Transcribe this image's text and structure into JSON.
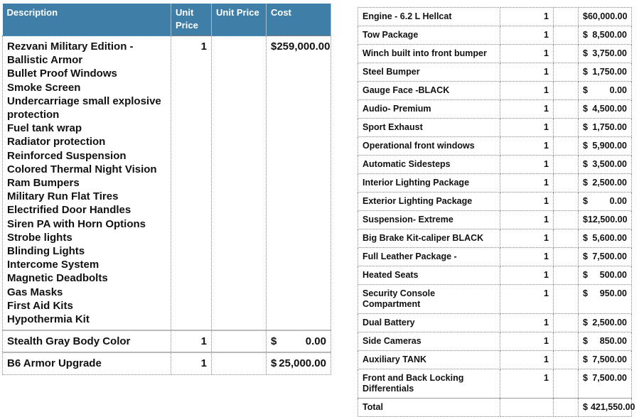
{
  "left_table": {
    "headers": [
      [
        "Description"
      ],
      [
        "Unit",
        "Price"
      ],
      [
        "Unit Price"
      ],
      [
        "Cost"
      ]
    ],
    "rows": [
      {
        "description": [
          "Rezvani  Military Edition -",
          "Ballistic Armor",
          "Bullet Proof Windows",
          "Smoke Screen",
          "Undercarriage small explosive",
          "protection",
          "Fuel tank wrap",
          "Radiator protection",
          "Reinforced Suspension",
          "Colored Thermal Night Vision",
          "Ram Bumpers",
          "Military Run Flat Tires",
          "Electrified Door Handles",
          "Siren PA with Horn Options",
          "Strobe lights",
          "Blinding Lights",
          "Intercome System",
          "Magnetic Deadbolts",
          "Gas Masks",
          "First Aid Kits",
          "Hypothermia Kit"
        ],
        "qty": "1",
        "currency": "$",
        "cost": "259,000.00"
      },
      {
        "description": [
          "Stealth Gray Body Color"
        ],
        "qty": "1",
        "currency": "$",
        "cost": "0.00"
      },
      {
        "description": [
          "B6 Armor Upgrade"
        ],
        "qty": "1",
        "currency": "$",
        "cost": "25,000.00"
      }
    ]
  },
  "right_table": {
    "rows": [
      {
        "description": [
          "Engine - 6.2 L Hellcat"
        ],
        "qty": "1",
        "currency": "$",
        "cost": "60,000.00"
      },
      {
        "description": [
          "Tow Package"
        ],
        "qty": "1",
        "currency": "$",
        "cost": "8,500.00"
      },
      {
        "description": [
          "Winch built into front bumper"
        ],
        "qty": "1",
        "currency": "$",
        "cost": "3,750.00"
      },
      {
        "description": [
          "Steel Bumper"
        ],
        "qty": "1",
        "currency": "$",
        "cost": "1,750.00"
      },
      {
        "description": [
          "Gauge Face -BLACK"
        ],
        "qty": "1",
        "currency": "$",
        "cost": "0.00"
      },
      {
        "description": [
          "Audio- Premium"
        ],
        "qty": "1",
        "currency": "$",
        "cost": "4,500.00"
      },
      {
        "description": [
          "Sport Exhaust"
        ],
        "qty": "1",
        "currency": "$",
        "cost": "1,750.00"
      },
      {
        "description": [
          "Operational front windows"
        ],
        "qty": "1",
        "currency": "$",
        "cost": "5,900.00"
      },
      {
        "description": [
          "Automatic Sidesteps"
        ],
        "qty": "1",
        "currency": "$",
        "cost": "3,500.00"
      },
      {
        "description": [
          "Interior Lighting Package"
        ],
        "qty": "1",
        "currency": "$",
        "cost": "2,500.00"
      },
      {
        "description": [
          "Exterior Lighting Package"
        ],
        "qty": "1",
        "currency": "$",
        "cost": "0.00"
      },
      {
        "description": [
          "Suspension- Extreme"
        ],
        "qty": "1",
        "currency": "$",
        "cost": "12,500.00"
      },
      {
        "description": [
          "Big Brake Kit-caliper BLACK"
        ],
        "qty": "1",
        "currency": "$",
        "cost": "5,600.00"
      },
      {
        "description": [
          "Full Leather Package -"
        ],
        "qty": "1",
        "currency": "$",
        "cost": "7,500.00"
      },
      {
        "description": [
          "Heated Seats"
        ],
        "qty": "1",
        "currency": "$",
        "cost": "500.00"
      },
      {
        "description": [
          "Security Console",
          "Compartment"
        ],
        "qty": "1",
        "currency": "$",
        "cost": "950.00"
      },
      {
        "description": [
          "Dual Battery"
        ],
        "qty": "1",
        "currency": "$",
        "cost": "2,500.00"
      },
      {
        "description": [
          "Side Cameras"
        ],
        "qty": "1",
        "currency": "$",
        "cost": "850.00"
      },
      {
        "description": [
          "Auxiliary TANK"
        ],
        "qty": "1",
        "currency": "$",
        "cost": "7,500.00"
      },
      {
        "description": [
          "Front and Back Locking",
          "Differentials"
        ],
        "qty": "1",
        "currency": "$",
        "cost": "7,500.00"
      }
    ],
    "total": {
      "label": "Total",
      "currency": "$",
      "cost": "421,550.00"
    }
  }
}
